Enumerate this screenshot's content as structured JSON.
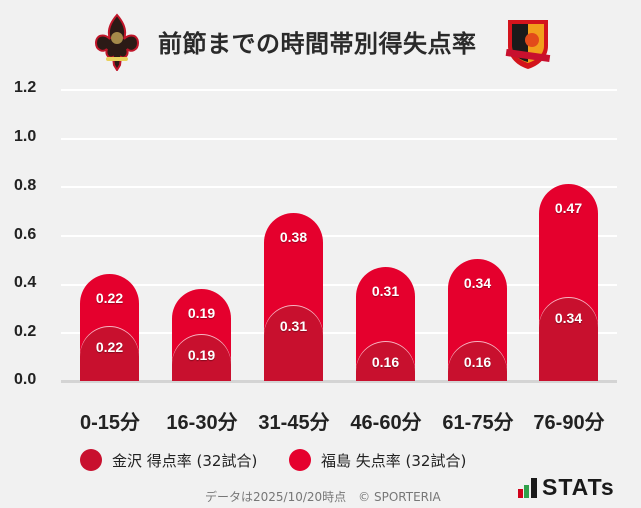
{
  "header": {
    "title": "前節までの時間帯別得失点率",
    "left_logo": "kanazawa-crest",
    "right_logo": "fukushima-united-crest"
  },
  "colors": {
    "kanazawa": "#c8102e",
    "fukushima": "#e5002d",
    "background": "#f1f1f1"
  },
  "chart_data": {
    "type": "bar",
    "stacked": true,
    "title": "前節までの時間帯別得失点率",
    "xlabel": "",
    "ylabel": "",
    "ylim": [
      0,
      1.2
    ],
    "yticks": [
      "0.0",
      "0.2",
      "0.4",
      "0.6",
      "0.8",
      "1.0",
      "1.2"
    ],
    "grid": true,
    "legend_position": "bottom",
    "categories": [
      "0-15分",
      "16-30分",
      "31-45分",
      "46-60分",
      "61-75分",
      "76-90分"
    ],
    "series": [
      {
        "name": "金沢 得点率 (32試合)",
        "color": "#c8102e",
        "values": [
          0.22,
          0.19,
          0.31,
          0.16,
          0.16,
          0.34
        ],
        "labels": [
          "0.22",
          "0.19",
          "0.31",
          "0.16",
          "0.16",
          "0.34"
        ]
      },
      {
        "name": "福島 失点率 (32試合)",
        "color": "#e5002d",
        "values": [
          0.22,
          0.19,
          0.38,
          0.31,
          0.34,
          0.47
        ],
        "labels": [
          "0.22",
          "0.19",
          "0.38",
          "0.31",
          "0.34",
          "0.47"
        ]
      }
    ]
  },
  "legend": [
    {
      "label": "金沢 得点率 (32試合)",
      "color": "#c8102e"
    },
    {
      "label": "福島 失点率 (32試合)",
      "color": "#e5002d"
    }
  ],
  "footer": {
    "note": "データは2025/10/20時点　© SPORTERIA",
    "brand": "STATs"
  }
}
